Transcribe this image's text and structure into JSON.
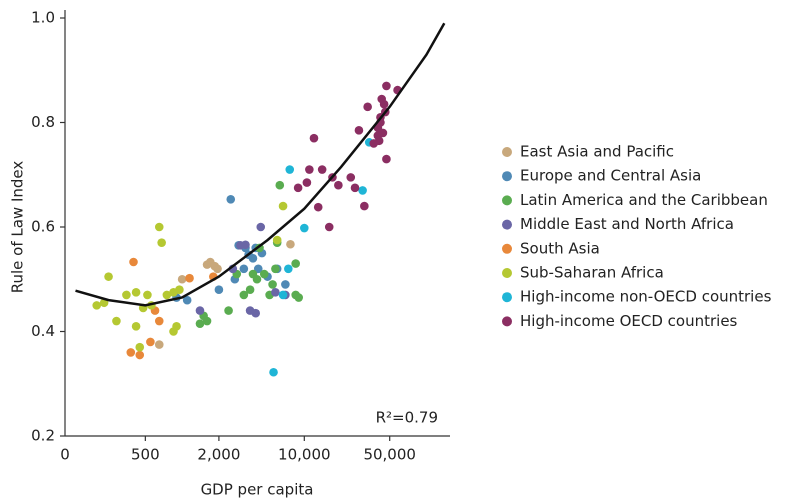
{
  "chart_data": {
    "type": "scatter",
    "x_label": "GDP per capita",
    "y_label": "Rule of Law Index",
    "x_scale": "log",
    "xlim": [
      110,
      150000
    ],
    "xticks": [
      500,
      {
        "value": 2000,
        "label": "2,000"
      },
      {
        "value": 10000,
        "label": "10,000"
      },
      {
        "value": 50000,
        "label": "50,000"
      }
    ],
    "x_origin_label": "0",
    "ylim": [
      0.2,
      1.0
    ],
    "yticks": [
      0.2,
      0.4,
      0.6,
      0.8,
      {
        "value": 1.0,
        "label": "1.0"
      }
    ],
    "annotation": "R²=0.79",
    "fit": {
      "color": "#111111",
      "x": [
        134,
        250,
        500,
        1000,
        2000,
        5000,
        10000,
        20000,
        50000,
        100000,
        140000
      ],
      "y": [
        0.478,
        0.46,
        0.45,
        0.465,
        0.505,
        0.575,
        0.635,
        0.715,
        0.83,
        0.93,
        0.99
      ]
    },
    "series": [
      {
        "name": "East Asia and Pacific",
        "color": "#c8a87c",
        "x": [
          1600,
          1700,
          1850,
          650,
          7700,
          1000,
          1950
        ],
        "y": [
          0.528,
          0.533,
          0.525,
          0.375,
          0.567,
          0.5,
          0.52
        ]
      },
      {
        "name": "Europe and Central Asia",
        "color": "#4f89b5",
        "x": [
          2500,
          2900,
          3300,
          3500,
          3800,
          4200,
          4500,
          5000,
          1100,
          900,
          2000,
          2700,
          6000,
          3200,
          4000,
          7000
        ],
        "y": [
          0.653,
          0.565,
          0.56,
          0.547,
          0.54,
          0.52,
          0.55,
          0.505,
          0.46,
          0.465,
          0.48,
          0.5,
          0.52,
          0.52,
          0.56,
          0.49
        ]
      },
      {
        "name": "Latin America and the Caribbean",
        "color": "#5aac50",
        "x": [
          6300,
          6000,
          8500,
          8500,
          9000,
          5200,
          5500,
          4700,
          4100,
          3600,
          3200,
          2400,
          1600,
          1400,
          1500,
          3800,
          5800,
          4300,
          2800
        ],
        "y": [
          0.68,
          0.57,
          0.53,
          0.47,
          0.465,
          0.47,
          0.49,
          0.51,
          0.5,
          0.48,
          0.47,
          0.44,
          0.42,
          0.415,
          0.43,
          0.51,
          0.52,
          0.56,
          0.51
        ]
      },
      {
        "name": "Middle East and North Africa",
        "color": "#6a66a6",
        "x": [
          3300,
          3000,
          2600,
          4000,
          7000,
          1400,
          3600,
          5800,
          4400
        ],
        "y": [
          0.566,
          0.565,
          0.52,
          0.435,
          0.47,
          0.44,
          0.44,
          0.475,
          0.6
        ]
      },
      {
        "name": "South Asia",
        "color": "#e8883a",
        "x": [
          400,
          1800,
          1150,
          450,
          550,
          650,
          600,
          380
        ],
        "y": [
          0.533,
          0.505,
          0.502,
          0.355,
          0.38,
          0.42,
          0.44,
          0.36
        ]
      },
      {
        "name": "Sub-Saharan Africa",
        "color": "#b5c832",
        "x": [
          650,
          680,
          250,
          200,
          230,
          290,
          350,
          420,
          480,
          420,
          450,
          520,
          560,
          750,
          850,
          900,
          950,
          6700,
          6000,
          850
        ],
        "y": [
          0.6,
          0.57,
          0.505,
          0.45,
          0.455,
          0.42,
          0.47,
          0.475,
          0.445,
          0.41,
          0.37,
          0.47,
          0.45,
          0.47,
          0.4,
          0.41,
          0.48,
          0.64,
          0.575,
          0.475
        ]
      },
      {
        "name": "High-income non-OECD countries",
        "color": "#1fb5d6",
        "x": [
          5600,
          7600,
          10000,
          30000,
          34000,
          7400,
          6700
        ],
        "y": [
          0.322,
          0.71,
          0.598,
          0.67,
          0.762,
          0.52,
          0.47
        ]
      },
      {
        "name": "High-income OECD countries",
        "color": "#8b2e62",
        "x": [
          47000,
          58000,
          43000,
          42000,
          40000,
          40000,
          44000,
          46000,
          45000,
          47000,
          41000,
          33000,
          28000,
          37000,
          10500,
          11000,
          12000,
          14000,
          17000,
          16000,
          19000,
          24000,
          26000,
          31000,
          13000,
          8900,
          42000
        ],
        "y": [
          0.87,
          0.862,
          0.845,
          0.81,
          0.79,
          0.775,
          0.78,
          0.82,
          0.835,
          0.73,
          0.765,
          0.83,
          0.785,
          0.76,
          0.685,
          0.71,
          0.77,
          0.71,
          0.695,
          0.6,
          0.68,
          0.695,
          0.675,
          0.64,
          0.638,
          0.675,
          0.8
        ]
      }
    ]
  }
}
